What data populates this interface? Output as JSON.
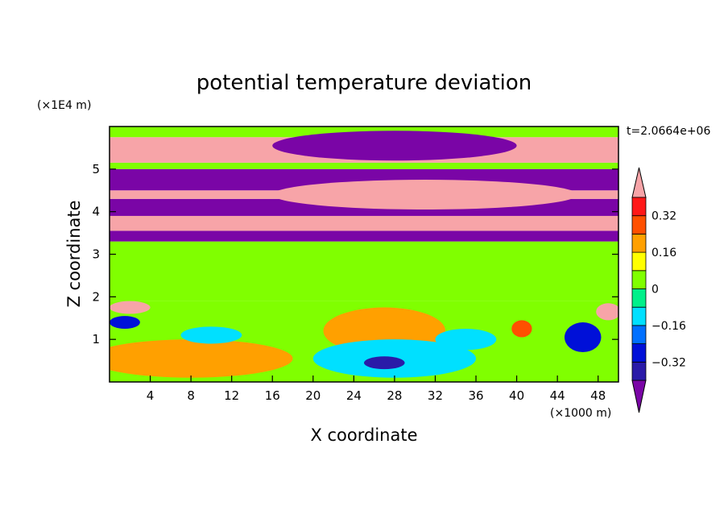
{
  "chart_data": {
    "type": "heatmap",
    "title": "potential temperature deviation",
    "xlabel": "X coordinate",
    "ylabel": "Z coordinate",
    "x_unit": "(×1000 m)",
    "y_unit": "(×1E4 m)",
    "time_label": "t=2.0664e+06",
    "xlim": [
      0,
      50
    ],
    "ylim": [
      0,
      6
    ],
    "x_ticks": [
      4,
      8,
      12,
      16,
      20,
      24,
      28,
      32,
      36,
      40,
      44,
      48
    ],
    "y_ticks": [
      1,
      2,
      3,
      4,
      5
    ],
    "colorbar": {
      "levels": [
        -0.4,
        -0.32,
        -0.24,
        -0.16,
        -0.08,
        0,
        0.08,
        0.16,
        0.24,
        0.32,
        0.4
      ],
      "tick_labels": [
        "0.32",
        "0.16",
        "0",
        "−0.16",
        "−0.32"
      ],
      "tick_values": [
        0.32,
        0.16,
        0,
        -0.16,
        -0.32
      ],
      "colors": [
        "#7a05a6",
        "#2a1aa8",
        "#0010d8",
        "#0070ff",
        "#00e0ff",
        "#00f08a",
        "#80ff00",
        "#ffff00",
        "#ffa000",
        "#ff5000",
        "#ff1818",
        "#f7a4a8"
      ],
      "extend": "both"
    },
    "bands": [
      {
        "z0": 0.0,
        "z1": 1.9,
        "level": 0.04
      },
      {
        "z0": 1.9,
        "z1": 3.3,
        "level": 0.04
      },
      {
        "z0": 3.3,
        "z1": 3.55,
        "level": -0.45
      },
      {
        "z0": 3.55,
        "z1": 3.9,
        "level": 0.45
      },
      {
        "z0": 3.9,
        "z1": 4.3,
        "level": -0.45
      },
      {
        "z0": 4.3,
        "z1": 4.5,
        "level": 0.45
      },
      {
        "z0": 4.5,
        "z1": 5.0,
        "level": -0.45
      },
      {
        "z0": 5.0,
        "z1": 5.15,
        "level": 0.0
      },
      {
        "z0": 5.15,
        "z1": 5.75,
        "level": 0.45
      },
      {
        "z0": 5.75,
        "z1": 6.0,
        "level": 0.05
      }
    ],
    "features": [
      {
        "x": 28,
        "z": 5.55,
        "rx": 12,
        "rz": 0.35,
        "level": -0.45
      },
      {
        "x": 31,
        "z": 4.4,
        "rx": 15,
        "rz": 0.35,
        "level": 0.45
      },
      {
        "x": 8,
        "z": 0.55,
        "rx": 10,
        "rz": 0.45,
        "level": 0.2
      },
      {
        "x": 27,
        "z": 1.2,
        "rx": 6,
        "rz": 0.55,
        "level": 0.2
      },
      {
        "x": 28,
        "z": 0.55,
        "rx": 8,
        "rz": 0.45,
        "level": -0.12
      },
      {
        "x": 27,
        "z": 0.45,
        "rx": 2,
        "rz": 0.15,
        "level": -0.4
      },
      {
        "x": 35,
        "z": 1.0,
        "rx": 3,
        "rz": 0.25,
        "level": -0.15
      },
      {
        "x": 40.5,
        "z": 1.25,
        "rx": 1,
        "rz": 0.2,
        "level": 0.3
      },
      {
        "x": 46.5,
        "z": 1.05,
        "rx": 1.8,
        "rz": 0.35,
        "level": -0.32
      },
      {
        "x": 10,
        "z": 1.1,
        "rx": 3,
        "rz": 0.2,
        "level": -0.1
      },
      {
        "x": 2,
        "z": 1.75,
        "rx": 2,
        "rz": 0.15,
        "level": 0.4
      },
      {
        "x": 49,
        "z": 1.65,
        "rx": 1.2,
        "rz": 0.2,
        "level": 0.4
      },
      {
        "x": 1.5,
        "z": 1.4,
        "rx": 1.5,
        "rz": 0.15,
        "level": -0.25
      }
    ]
  }
}
